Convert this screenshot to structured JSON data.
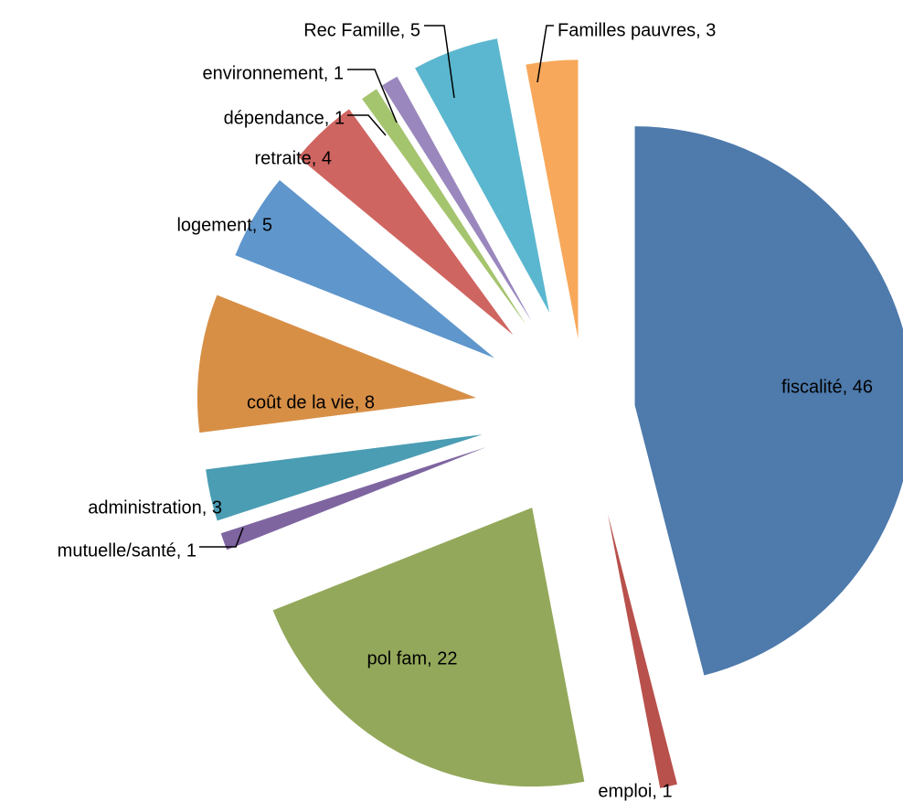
{
  "chart_data": {
    "type": "pie",
    "exploded": true,
    "legend": "none",
    "slices": [
      {
        "label": "fiscalité",
        "value": 46,
        "color": "#4E7AAC",
        "text": "fiscalité, 46"
      },
      {
        "label": "emploi",
        "value": 1,
        "color": "#B8504B",
        "text": "emploi, 1"
      },
      {
        "label": "pol fam",
        "value": 22,
        "color": "#93A85A",
        "text": "pol fam, 22"
      },
      {
        "label": "mutuelle/santé",
        "value": 1,
        "color": "#7E65A0",
        "text": "mutuelle/santé, 1"
      },
      {
        "label": "administration",
        "value": 3,
        "color": "#4A9DB3",
        "text": "administration, 3"
      },
      {
        "label": "coût de la vie",
        "value": 8,
        "color": "#D78F46",
        "text": "coût de la vie, 8"
      },
      {
        "label": "logement",
        "value": 5,
        "color": "#5F96CC",
        "text": "logement, 5"
      },
      {
        "label": "retraite",
        "value": 4,
        "color": "#CF6561",
        "text": "retraite, 4"
      },
      {
        "label": "dépendance",
        "value": 1,
        "color": "#A5C46E",
        "text": "dépendance, 1"
      },
      {
        "label": "environnement",
        "value": 1,
        "color": "#9A87BD",
        "text": "environnement, 1"
      },
      {
        "label": "Rec Famille",
        "value": 5,
        "color": "#5BB7CF",
        "text": "Rec Famille, 5"
      },
      {
        "label": "Familles pauvres",
        "value": 3,
        "color": "#F7A85A",
        "text": "Familles pauvres, 3"
      }
    ]
  }
}
